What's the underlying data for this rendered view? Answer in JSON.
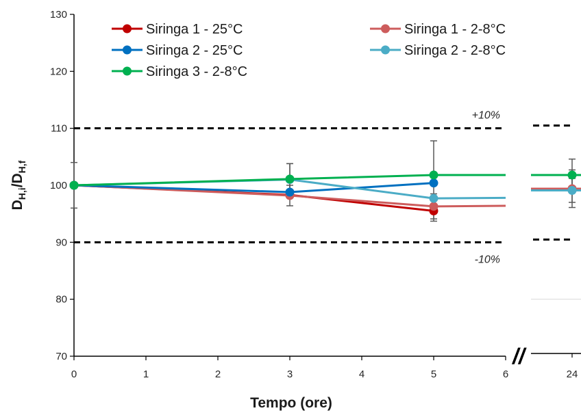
{
  "chart_data": {
    "type": "line",
    "title": "",
    "xlabel": "Tempo (ore)",
    "ylabel": {
      "main": "D",
      "sub1": "H,i",
      "slash": "/D",
      "sub2": "H,f"
    },
    "ylim": [
      70,
      130
    ],
    "yticks": [
      70,
      80,
      90,
      100,
      110,
      120,
      130
    ],
    "xticks": [
      "0",
      "1",
      "2",
      "3",
      "4",
      "5",
      "6",
      "24"
    ],
    "axis_break": "//",
    "grid": false,
    "legend_position": "top",
    "reference_lines": [
      {
        "y": 110,
        "label": "+10%"
      },
      {
        "y": 90,
        "label": "-10%"
      }
    ],
    "series": [
      {
        "name": "Siringa 1 - 25°C",
        "color": "#c00000",
        "points": [
          {
            "x": 0,
            "y": 100,
            "err": 0
          },
          {
            "x": 3,
            "y": 98.3,
            "err": 0
          },
          {
            "x": 5,
            "y": 95.5,
            "err": 1.8
          }
        ],
        "trail": []
      },
      {
        "name": "Siringa 1 - 2-8°C",
        "color": "#cd5c5c",
        "points": [
          {
            "x": 0,
            "y": 100,
            "err": 4
          },
          {
            "x": 3,
            "y": 98.2,
            "err": 1.8
          },
          {
            "x": 5,
            "y": 96.3,
            "err": 2.2
          },
          {
            "x": 24,
            "y": 99.4,
            "err": 3.3
          }
        ],
        "trail": [
          {
            "x": 5,
            "y": 96.3
          },
          {
            "x": 6,
            "y": 96.4
          }
        ]
      },
      {
        "name": "Siringa 2 - 25°C",
        "color": "#0070c0",
        "points": [
          {
            "x": 0,
            "y": 100,
            "err": 0
          },
          {
            "x": 3,
            "y": 98.8,
            "err": 0
          },
          {
            "x": 5,
            "y": 100.4,
            "err": 0
          }
        ],
        "trail": []
      },
      {
        "name": "Siringa 2 - 2-8°C",
        "color": "#4bacc6",
        "points": [
          {
            "x": 0,
            "y": 100,
            "err": 0
          },
          {
            "x": 3,
            "y": 101,
            "err": 2.8
          },
          {
            "x": 5,
            "y": 97.7,
            "err": 0
          },
          {
            "x": 24,
            "y": 99.1,
            "err": 2.1
          }
        ],
        "trail": [
          {
            "x": 5,
            "y": 97.7
          },
          {
            "x": 6,
            "y": 97.8
          }
        ]
      },
      {
        "name": "Siringa 3 - 2-8°C",
        "color": "#00b050",
        "points": [
          {
            "x": 0,
            "y": 100,
            "err": 0
          },
          {
            "x": 3,
            "y": 101.1,
            "err": 2.7
          },
          {
            "x": 5,
            "y": 101.8,
            "err": 6
          },
          {
            "x": 24,
            "y": 101.8,
            "err": 2.8
          }
        ],
        "trail": [
          {
            "x": 5,
            "y": 101.8
          },
          {
            "x": 6,
            "y": 101.8
          }
        ]
      }
    ]
  }
}
